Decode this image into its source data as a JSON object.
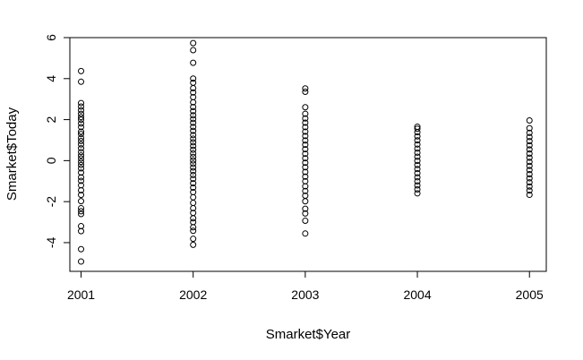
{
  "chart_data": {
    "type": "scatter",
    "title": "",
    "xlabel": "Smarket$Year",
    "ylabel": "Smarket$Today",
    "xlim": [
      2000.9,
      2005.15
    ],
    "ylim": [
      -5.4,
      6.0
    ],
    "x_ticks": [
      "2001",
      "2002",
      "2003",
      "2004",
      "2005"
    ],
    "y_ticks": [
      "-4",
      "-2",
      "0",
      "2",
      "4",
      "6"
    ],
    "grid": false,
    "legend": "none",
    "marker": "open-circle",
    "series": [
      {
        "x": 2001,
        "values": [
          -4.922,
          -4.318,
          -3.441,
          -3.196,
          -2.605,
          -2.468,
          -2.318,
          -1.978,
          -1.671,
          -1.447,
          -1.204,
          -0.986,
          -0.812,
          -0.585,
          -0.377,
          -0.211,
          -0.062,
          0.104,
          0.251,
          0.418,
          0.602,
          0.791,
          0.955,
          1.109,
          1.296,
          1.412,
          1.636,
          1.812,
          1.999,
          2.126,
          2.283,
          2.457,
          2.636,
          2.808,
          3.847,
          4.368
        ]
      },
      {
        "x": 2002,
        "values": [
          -4.105,
          -3.813,
          -3.425,
          -3.251,
          -2.998,
          -2.812,
          -2.549,
          -2.319,
          -2.061,
          -1.788,
          -1.537,
          -1.318,
          -1.102,
          -0.891,
          -0.702,
          -0.514,
          -0.332,
          -0.151,
          0.012,
          0.179,
          0.352,
          0.531,
          0.716,
          0.895,
          1.068,
          1.247,
          1.452,
          1.643,
          1.846,
          2.031,
          2.212,
          2.413,
          2.614,
          2.846,
          3.098,
          3.325,
          3.534,
          3.801,
          4.001,
          4.773,
          5.389,
          5.733
        ]
      },
      {
        "x": 2003,
        "values": [
          -3.557,
          -2.934,
          -2.576,
          -2.349,
          -1.982,
          -1.711,
          -1.482,
          -1.253,
          -1.007,
          -0.782,
          -0.553,
          -0.321,
          -0.104,
          0.116,
          0.335,
          0.556,
          0.774,
          0.983,
          1.201,
          1.412,
          1.634,
          1.851,
          2.057,
          2.284,
          2.604,
          3.359,
          3.521
        ]
      },
      {
        "x": 2004,
        "values": [
          -1.597,
          -1.402,
          -1.208,
          -1.011,
          -0.812,
          -0.611,
          -0.412,
          -0.213,
          -0.012,
          0.191,
          0.389,
          0.586,
          0.788,
          0.987,
          1.186,
          1.384,
          1.554,
          1.652
        ]
      },
      {
        "x": 2005,
        "values": [
          -1.668,
          -1.457,
          -1.263,
          -1.062,
          -0.861,
          -0.661,
          -0.459,
          -0.258,
          -0.062,
          0.142,
          0.344,
          0.545,
          0.749,
          0.951,
          1.153,
          1.353,
          1.582,
          1.961
        ]
      }
    ]
  }
}
